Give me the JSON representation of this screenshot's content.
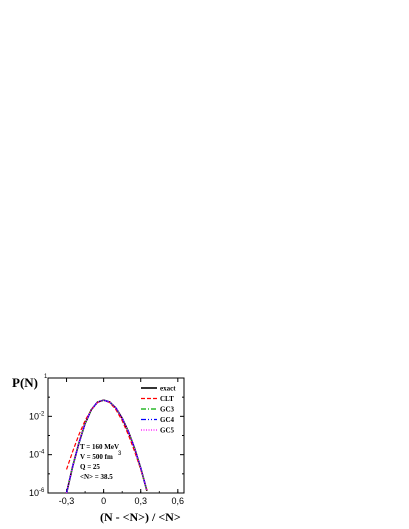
{
  "chart_data": {
    "type": "line",
    "xlabel": "(N - <N>) / <N>",
    "ylabel": "P(N)",
    "ylabel_exponent": "1",
    "xlim": [
      -0.45,
      0.65
    ],
    "ylim_log10": [
      -6,
      0
    ],
    "yscale": "log",
    "x_ticks": [
      {
        "value": -0.3,
        "label": "-0,3"
      },
      {
        "value": 0,
        "label": "0"
      },
      {
        "value": 0.3,
        "label": "0,3"
      },
      {
        "value": 0.6,
        "label": "0,6"
      }
    ],
    "y_ticks": [
      {
        "exp": -6,
        "base": "10",
        "sup": "-6"
      },
      {
        "exp": -4,
        "base": "10",
        "sup": "-4"
      },
      {
        "exp": -2,
        "base": "10",
        "sup": "-2"
      }
    ],
    "x": [
      -0.3,
      -0.25,
      -0.2,
      -0.15,
      -0.1,
      -0.05,
      0.0,
      0.05,
      0.1,
      0.15,
      0.2,
      0.25,
      0.3,
      0.35,
      0.4,
      0.45
    ],
    "series": [
      {
        "name": "exact",
        "color": "#000000",
        "dash": "",
        "values": [
          1e-06,
          2.5e-05,
          0.0004,
          0.0042,
          0.022,
          0.055,
          0.07,
          0.055,
          0.027,
          0.008,
          0.0016,
          0.00022,
          2e-05,
          1.3e-06,
          null,
          null
        ]
      },
      {
        "name": "CLT",
        "color": "#ff0000",
        "dash": "4,2",
        "values": [
          1.7e-05,
          0.00015,
          0.0011,
          0.006,
          0.022,
          0.052,
          0.07,
          0.052,
          0.022,
          0.006,
          0.0011,
          0.00015,
          1.7e-05,
          1.4e-06,
          null,
          null
        ]
      },
      {
        "name": "GC3",
        "color": "#00aa00",
        "dash": "5,2,1,2",
        "values": [
          1e-06,
          2.5e-05,
          0.0004,
          0.0042,
          0.022,
          0.055,
          0.07,
          0.055,
          0.027,
          0.008,
          0.0016,
          0.00022,
          2e-05,
          1.3e-06,
          null,
          null
        ]
      },
      {
        "name": "GC4",
        "color": "#0000ff",
        "dash": "5,2,1,2,1,2",
        "values": [
          1e-06,
          2.5e-05,
          0.0004,
          0.0042,
          0.022,
          0.055,
          0.07,
          0.055,
          0.027,
          0.008,
          0.0016,
          0.00022,
          2e-05,
          1.3e-06,
          null,
          null
        ]
      },
      {
        "name": "GC5",
        "color": "#ff00ff",
        "dash": "1,1.5",
        "values": [
          1e-06,
          2.5e-05,
          0.0004,
          0.0042,
          0.022,
          0.055,
          0.07,
          0.055,
          0.027,
          0.008,
          0.0016,
          0.00022,
          2e-05,
          1.3e-06,
          null,
          null
        ]
      }
    ],
    "annotations": [
      "T = 160 MeV",
      "V = 500 fm",
      "Q = 25",
      "<N> = 38.5"
    ],
    "annotation_superscript": "3",
    "legend_position": "top-right",
    "grid": false
  }
}
